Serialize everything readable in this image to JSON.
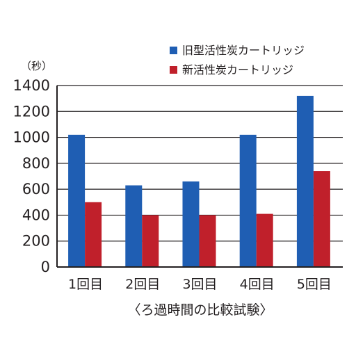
{
  "chart_data": {
    "type": "bar",
    "categories": [
      "1回目",
      "2回目",
      "3回目",
      "4回目",
      "5回目"
    ],
    "series": [
      {
        "name": "旧型活性炭カートリッジ",
        "color": "#1f5eb3",
        "values": [
          1020,
          630,
          660,
          1020,
          1320
        ]
      },
      {
        "name": "新活性炭カートリッジ",
        "color": "#c0202b",
        "values": [
          500,
          400,
          400,
          410,
          740
        ]
      }
    ],
    "ylim": [
      0,
      1400
    ],
    "yticks": [
      0,
      200,
      400,
      600,
      800,
      1000,
      1200,
      1400
    ],
    "ylabel": "（秒）",
    "xlabel": "〈ろ過時間の比較試験〉",
    "grid": true,
    "legend_position": "top-right"
  }
}
